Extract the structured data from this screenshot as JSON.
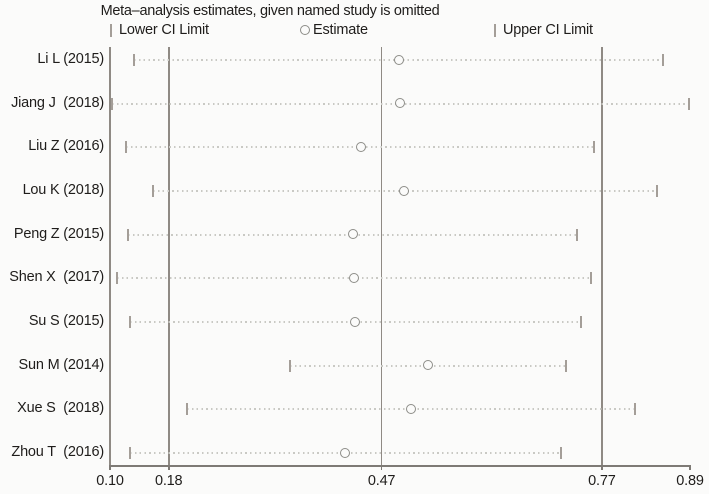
{
  "title": "Meta–analysis estimates, given named study is omitted",
  "legend": {
    "lower_label": "Lower CI Limit",
    "estimate_label": "Estimate",
    "upper_label": "Upper CI Limit"
  },
  "colors": {
    "background": "#fbfbfa",
    "text": "#1f1d1b",
    "gridline": "#8f8a84",
    "axis": "#7e7a75",
    "dotted_line": "#c9c9c4",
    "ci_tick": "#a49e98",
    "estimate_circle": "#8d8d88"
  },
  "chart_data": {
    "type": "scatter",
    "subtype": "leave-one-out-sensitivity-forest-plot",
    "title": "Meta–analysis estimates, given named study is omitted",
    "xlabel": "",
    "ylabel": "",
    "xlim": [
      0.1,
      0.89
    ],
    "x_ticks": [
      0.1,
      0.18,
      0.47,
      0.77,
      0.89
    ],
    "gridline_values": [
      0.1,
      0.18,
      0.47,
      0.77
    ],
    "grid": "vertical-reference-lines",
    "legend_position": "top",
    "studies": [
      {
        "label": "Li L (2015)",
        "lower": 0.133,
        "estimate": 0.494,
        "upper": 0.853
      },
      {
        "label": "Jiang J  (2018)",
        "lower": 0.102,
        "estimate": 0.495,
        "upper": 0.889
      },
      {
        "label": "Liu Z (2016)",
        "lower": 0.122,
        "estimate": 0.442,
        "upper": 0.759
      },
      {
        "label": "Lou K (2018)",
        "lower": 0.158,
        "estimate": 0.501,
        "upper": 0.845
      },
      {
        "label": "Peng Z (2015)",
        "lower": 0.124,
        "estimate": 0.431,
        "upper": 0.736
      },
      {
        "label": "Shen X  (2017)",
        "lower": 0.109,
        "estimate": 0.433,
        "upper": 0.755
      },
      {
        "label": "Su S (2015)",
        "lower": 0.127,
        "estimate": 0.435,
        "upper": 0.741
      },
      {
        "label": "Sun M (2014)",
        "lower": 0.345,
        "estimate": 0.534,
        "upper": 0.721
      },
      {
        "label": "Xue S  (2018)",
        "lower": 0.205,
        "estimate": 0.51,
        "upper": 0.815
      },
      {
        "label": "Zhou T  (2016)",
        "lower": 0.127,
        "estimate": 0.421,
        "upper": 0.714
      }
    ]
  }
}
